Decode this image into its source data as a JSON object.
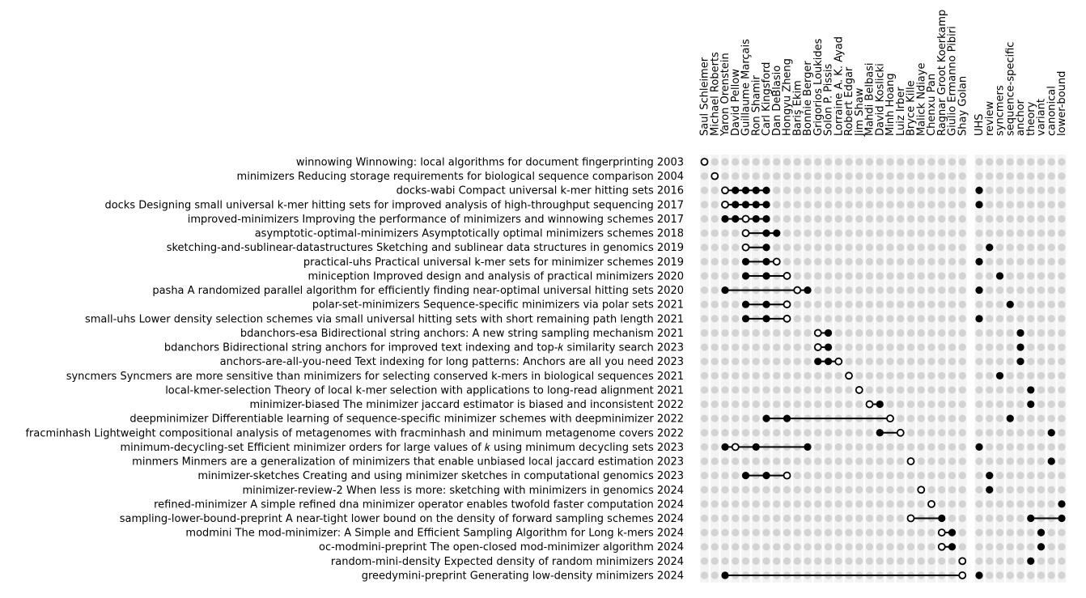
{
  "chart_data": {
    "type": "matrix",
    "author_columns": [
      "Saul Schleimer",
      "Michael Roberts",
      "Yaron Orenstein",
      "David Pellow",
      "Guillaume Marçais",
      "Ron Shamir",
      "Carl Kingsford",
      "Dan DeBlasio",
      "Hongyu Zheng",
      "Bariş Ekim",
      "Bonnie Berger",
      "Grigorios Loukides",
      "Solon P. Pissis",
      "Lorraine A. K. Ayad",
      "Robert Edgar",
      "Jim Shaw",
      "Mahdi Belbasi",
      "David Koslicki",
      "Minh Hoang",
      "Luiz Irber",
      "Bryce Kille",
      "Malick Ndiaye",
      "Chenxu Pan",
      "Ragnar Groot Koerkamp",
      "Giulio Ermanno Pibiri",
      "Shay Golan"
    ],
    "tag_columns": [
      "UHS",
      "review",
      "syncmers",
      "sequence-specific",
      "anchor",
      "theory",
      "variant",
      "canonical",
      "lower-bound"
    ],
    "rows": [
      {
        "label": "winnowing Winnowing: local algorithms for document fingerprinting 2003",
        "authors": [
          0
        ],
        "first": [
          0
        ],
        "tags": []
      },
      {
        "label": "minimizers Reducing storage requirements for biological sequence comparison 2004",
        "authors": [
          1
        ],
        "first": [
          1
        ],
        "tags": []
      },
      {
        "label": "docks-wabi Compact universal k-mer hitting sets 2016",
        "authors": [
          2,
          3,
          4,
          5,
          6
        ],
        "first": [
          2
        ],
        "tags": [
          0
        ]
      },
      {
        "label": "docks Designing small universal k-mer hitting sets for improved analysis of high-throughput sequencing 2017",
        "authors": [
          2,
          3,
          4,
          5,
          6
        ],
        "first": [
          2
        ],
        "tags": [
          0
        ]
      },
      {
        "label": "improved-minimizers Improving the performance of minimizers and winnowing schemes 2017",
        "authors": [
          2,
          3,
          4,
          5,
          6
        ],
        "first": [
          4
        ],
        "tags": []
      },
      {
        "label": "asymptotic-optimal-minimizers Asymptotically optimal minimizers schemes 2018",
        "authors": [
          4,
          6,
          7
        ],
        "first": [
          4
        ],
        "tags": []
      },
      {
        "label": "sketching-and-sublinear-datastructures Sketching and sublinear data structures in genomics 2019",
        "authors": [
          4,
          6
        ],
        "first": [
          4
        ],
        "tags": [
          1
        ]
      },
      {
        "label": "practical-uhs Practical universal k-mer sets for minimizer schemes 2019",
        "authors": [
          4,
          6,
          7
        ],
        "first": [
          7
        ],
        "tags": [
          0
        ]
      },
      {
        "label": "miniception Improved design and analysis of practical minimizers 2020",
        "authors": [
          4,
          6,
          8
        ],
        "first": [
          8
        ],
        "tags": [
          2
        ]
      },
      {
        "label": "pasha A randomized parallel algorithm for efficiently finding near-optimal universal hitting sets 2020",
        "authors": [
          2,
          9,
          10
        ],
        "first": [
          9
        ],
        "tags": [
          0
        ]
      },
      {
        "label": "polar-set-minimizers Sequence-specific minimizers via polar sets 2021",
        "authors": [
          4,
          6,
          8
        ],
        "first": [
          8
        ],
        "tags": [
          3
        ]
      },
      {
        "label": "small-uhs Lower density selection schemes via small universal hitting sets with short remaining path length 2021",
        "authors": [
          4,
          6,
          8
        ],
        "first": [
          8
        ],
        "tags": [
          0
        ]
      },
      {
        "label": "bdanchors-esa Bidirectional string anchors: A new string sampling mechanism 2021",
        "authors": [
          11,
          12
        ],
        "first": [
          11
        ],
        "tags": [
          4
        ]
      },
      {
        "label": "bdanchors Bidirectional string anchors for improved text indexing and top-𝑘 similarity search 2023",
        "authors": [
          11,
          12
        ],
        "first": [
          11
        ],
        "tags": [
          4
        ]
      },
      {
        "label": "anchors-are-all-you-need Text indexing for long patterns: Anchors are all you need 2023",
        "authors": [
          11,
          12,
          13
        ],
        "first": [
          13
        ],
        "tags": [
          4
        ]
      },
      {
        "label": "syncmers Syncmers are more sensitive than minimizers for selecting conserved k-mers in biological sequences 2021",
        "authors": [
          14
        ],
        "first": [
          14
        ],
        "tags": [
          2
        ]
      },
      {
        "label": "local-kmer-selection Theory of local k-mer selection with applications to long-read alignment 2021",
        "authors": [
          15
        ],
        "first": [
          15
        ],
        "tags": [
          5
        ]
      },
      {
        "label": "minimizer-biased The minimizer jaccard estimator is biased and inconsistent 2022",
        "authors": [
          16,
          17
        ],
        "first": [
          16
        ],
        "tags": [
          5
        ]
      },
      {
        "label": "deepminimizer Differentiable learning of sequence-specific minimizer schemes with deepminimizer 2022",
        "authors": [
          6,
          8,
          18
        ],
        "first": [
          18
        ],
        "tags": [
          3
        ]
      },
      {
        "label": "fracminhash Lightweight compositional analysis of metagenomes with fracminhash and minimum metagenome covers 2022",
        "authors": [
          17,
          19
        ],
        "first": [
          19
        ],
        "tags": [
          7
        ]
      },
      {
        "label": "minimum-decycling-set Efficient minimizer orders for large values of 𝑘 using minimum decycling sets 2023",
        "authors": [
          2,
          3,
          5,
          10
        ],
        "first": [
          3
        ],
        "tags": [
          0
        ]
      },
      {
        "label": "minmers Minmers are a generalization of minimizers that enable unbiased local jaccard estimation 2023",
        "authors": [
          20
        ],
        "first": [
          20
        ],
        "tags": [
          7
        ]
      },
      {
        "label": "minimizer-sketches Creating and using minimizer sketches in computational genomics 2023",
        "authors": [
          4,
          6,
          8
        ],
        "first": [
          8
        ],
        "tags": [
          1
        ]
      },
      {
        "label": "minimizer-review-2 When less is more: sketching with minimizers in genomics 2024",
        "authors": [
          21
        ],
        "first": [
          21
        ],
        "tags": [
          1
        ]
      },
      {
        "label": "refined-minimizer A simple refined dna minimizer operator enables twofold faster computation 2024",
        "authors": [
          22
        ],
        "first": [
          22
        ],
        "tags": [
          8
        ]
      },
      {
        "label": "sampling-lower-bound-preprint A near-tight lower bound on the density of forward sampling schemes 2024",
        "authors": [
          20,
          23
        ],
        "first": [
          20
        ],
        "tags": [
          5,
          8
        ]
      },
      {
        "label": "modmini The mod-minimizer: A Simple and Efficient Sampling Algorithm for Long k-mers 2024",
        "authors": [
          23,
          24
        ],
        "first": [
          23
        ],
        "tags": [
          6
        ]
      },
      {
        "label": "oc-modmini-preprint The open-closed mod-minimizer algorithm 2024",
        "authors": [
          23,
          24
        ],
        "first": [
          23
        ],
        "tags": [
          6
        ]
      },
      {
        "label": "random-mini-density Expected density of random minimizers 2024",
        "authors": [
          25
        ],
        "first": [
          25
        ],
        "tags": [
          5
        ]
      },
      {
        "label": "greedymini-preprint Generating low-density minimizers 2024",
        "authors": [
          2,
          25
        ],
        "first": [
          25
        ],
        "tags": [
          0
        ]
      }
    ]
  }
}
